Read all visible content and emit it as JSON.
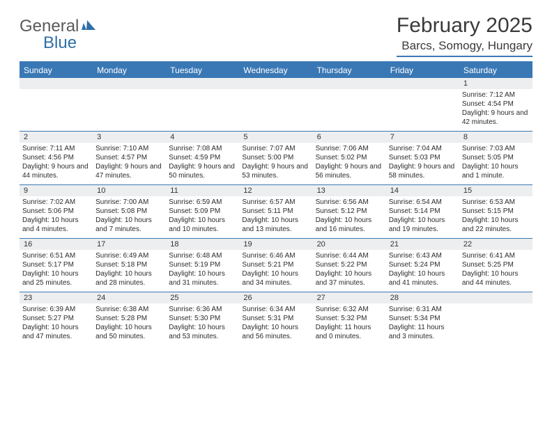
{
  "logo": {
    "part1": "General",
    "part2": "Blue"
  },
  "title": "February 2025",
  "location": "Barcs, Somogy, Hungary",
  "colors": {
    "header_bg": "#3a78b5",
    "header_text": "#ffffff",
    "daynum_bg": "#eceeef",
    "body_text": "#2b2b2b",
    "title_text": "#3a3a3a",
    "logo_gray": "#5a5a5a",
    "logo_blue": "#2f6fa8",
    "rule": "#3a78b5",
    "page_bg": "#ffffff"
  },
  "fonts": {
    "title_size_pt": 22,
    "location_size_pt": 13,
    "dayhead_size_pt": 9,
    "daynum_size_pt": 8,
    "cell_size_pt": 7.5
  },
  "day_names": [
    "Sunday",
    "Monday",
    "Tuesday",
    "Wednesday",
    "Thursday",
    "Friday",
    "Saturday"
  ],
  "weeks": [
    {
      "nums": [
        "",
        "",
        "",
        "",
        "",
        "",
        "1"
      ],
      "cells": [
        null,
        null,
        null,
        null,
        null,
        null,
        {
          "sunrise": "7:12 AM",
          "sunset": "4:54 PM",
          "daylight": "9 hours and 42 minutes."
        }
      ]
    },
    {
      "nums": [
        "2",
        "3",
        "4",
        "5",
        "6",
        "7",
        "8"
      ],
      "cells": [
        {
          "sunrise": "7:11 AM",
          "sunset": "4:56 PM",
          "daylight": "9 hours and 44 minutes."
        },
        {
          "sunrise": "7:10 AM",
          "sunset": "4:57 PM",
          "daylight": "9 hours and 47 minutes."
        },
        {
          "sunrise": "7:08 AM",
          "sunset": "4:59 PM",
          "daylight": "9 hours and 50 minutes."
        },
        {
          "sunrise": "7:07 AM",
          "sunset": "5:00 PM",
          "daylight": "9 hours and 53 minutes."
        },
        {
          "sunrise": "7:06 AM",
          "sunset": "5:02 PM",
          "daylight": "9 hours and 56 minutes."
        },
        {
          "sunrise": "7:04 AM",
          "sunset": "5:03 PM",
          "daylight": "9 hours and 58 minutes."
        },
        {
          "sunrise": "7:03 AM",
          "sunset": "5:05 PM",
          "daylight": "10 hours and 1 minute."
        }
      ]
    },
    {
      "nums": [
        "9",
        "10",
        "11",
        "12",
        "13",
        "14",
        "15"
      ],
      "cells": [
        {
          "sunrise": "7:02 AM",
          "sunset": "5:06 PM",
          "daylight": "10 hours and 4 minutes."
        },
        {
          "sunrise": "7:00 AM",
          "sunset": "5:08 PM",
          "daylight": "10 hours and 7 minutes."
        },
        {
          "sunrise": "6:59 AM",
          "sunset": "5:09 PM",
          "daylight": "10 hours and 10 minutes."
        },
        {
          "sunrise": "6:57 AM",
          "sunset": "5:11 PM",
          "daylight": "10 hours and 13 minutes."
        },
        {
          "sunrise": "6:56 AM",
          "sunset": "5:12 PM",
          "daylight": "10 hours and 16 minutes."
        },
        {
          "sunrise": "6:54 AM",
          "sunset": "5:14 PM",
          "daylight": "10 hours and 19 minutes."
        },
        {
          "sunrise": "6:53 AM",
          "sunset": "5:15 PM",
          "daylight": "10 hours and 22 minutes."
        }
      ]
    },
    {
      "nums": [
        "16",
        "17",
        "18",
        "19",
        "20",
        "21",
        "22"
      ],
      "cells": [
        {
          "sunrise": "6:51 AM",
          "sunset": "5:17 PM",
          "daylight": "10 hours and 25 minutes."
        },
        {
          "sunrise": "6:49 AM",
          "sunset": "5:18 PM",
          "daylight": "10 hours and 28 minutes."
        },
        {
          "sunrise": "6:48 AM",
          "sunset": "5:19 PM",
          "daylight": "10 hours and 31 minutes."
        },
        {
          "sunrise": "6:46 AM",
          "sunset": "5:21 PM",
          "daylight": "10 hours and 34 minutes."
        },
        {
          "sunrise": "6:44 AM",
          "sunset": "5:22 PM",
          "daylight": "10 hours and 37 minutes."
        },
        {
          "sunrise": "6:43 AM",
          "sunset": "5:24 PM",
          "daylight": "10 hours and 41 minutes."
        },
        {
          "sunrise": "6:41 AM",
          "sunset": "5:25 PM",
          "daylight": "10 hours and 44 minutes."
        }
      ]
    },
    {
      "nums": [
        "23",
        "24",
        "25",
        "26",
        "27",
        "28",
        ""
      ],
      "cells": [
        {
          "sunrise": "6:39 AM",
          "sunset": "5:27 PM",
          "daylight": "10 hours and 47 minutes."
        },
        {
          "sunrise": "6:38 AM",
          "sunset": "5:28 PM",
          "daylight": "10 hours and 50 minutes."
        },
        {
          "sunrise": "6:36 AM",
          "sunset": "5:30 PM",
          "daylight": "10 hours and 53 minutes."
        },
        {
          "sunrise": "6:34 AM",
          "sunset": "5:31 PM",
          "daylight": "10 hours and 56 minutes."
        },
        {
          "sunrise": "6:32 AM",
          "sunset": "5:32 PM",
          "daylight": "11 hours and 0 minutes."
        },
        {
          "sunrise": "6:31 AM",
          "sunset": "5:34 PM",
          "daylight": "11 hours and 3 minutes."
        },
        null
      ]
    }
  ],
  "labels": {
    "sunrise": "Sunrise: ",
    "sunset": "Sunset: ",
    "daylight": "Daylight: "
  }
}
